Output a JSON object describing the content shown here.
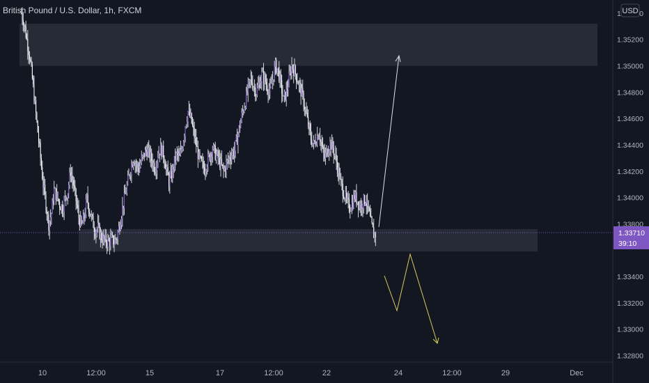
{
  "chart_data": {
    "type": "candlestick",
    "title": "British Pound / U.S. Dollar, 1h, FXCM",
    "currency": "USD",
    "y_ticks": [
      "1.35400",
      "1.35200",
      "1.35000",
      "1.34800",
      "1.34600",
      "1.34400",
      "1.34200",
      "1.34000",
      "1.33800",
      "1.33400",
      "1.33200",
      "1.33000",
      "1.32800"
    ],
    "y_range": [
      1.3275,
      1.355
    ],
    "x_ticks": [
      "10",
      "12:00",
      "15",
      "17",
      "12:00",
      "22",
      "24",
      "12:00",
      "29",
      "Dec"
    ],
    "current_price": "1.33710",
    "countdown": "39:10",
    "close_series": [
      1.354,
      1.3532,
      1.352,
      1.3508,
      1.349,
      1.347,
      1.345,
      1.343,
      1.341,
      1.3395,
      1.338,
      1.3388,
      1.3405,
      1.3401,
      1.3395,
      1.3392,
      1.3399,
      1.3405,
      1.342,
      1.341,
      1.3398,
      1.3385,
      1.3378,
      1.3385,
      1.3399,
      1.339,
      1.3382,
      1.3375,
      1.3377,
      1.3371,
      1.3368,
      1.3367,
      1.3366,
      1.3368,
      1.3366,
      1.337,
      1.338,
      1.3392,
      1.3402,
      1.3412,
      1.3422,
      1.343,
      1.3425,
      1.3422,
      1.3428,
      1.3433,
      1.3436,
      1.3432,
      1.3427,
      1.3422,
      1.3433,
      1.3437,
      1.3433,
      1.3422,
      1.3412,
      1.3417,
      1.3427,
      1.3433,
      1.343,
      1.344,
      1.3455,
      1.3465,
      1.346,
      1.345,
      1.344,
      1.343,
      1.3425,
      1.3422,
      1.3427,
      1.3432,
      1.3438,
      1.3433,
      1.343,
      1.3425,
      1.342,
      1.3425,
      1.343,
      1.3433,
      1.3436,
      1.3445,
      1.3455,
      1.3465,
      1.3473,
      1.3483,
      1.349,
      1.3485,
      1.348,
      1.3486,
      1.3493,
      1.349,
      1.3484,
      1.348,
      1.349,
      1.35,
      1.3497,
      1.3485,
      1.3474,
      1.348,
      1.349,
      1.35,
      1.3496,
      1.349,
      1.3483,
      1.3476,
      1.3466,
      1.3455,
      1.3445,
      1.344,
      1.3445,
      1.345,
      1.3438,
      1.343,
      1.3436,
      1.3441,
      1.3438,
      1.343,
      1.342,
      1.341,
      1.3404,
      1.3397,
      1.3393,
      1.3395,
      1.3401,
      1.3398,
      1.3393,
      1.3396,
      1.3399,
      1.339,
      1.338,
      1.3372
    ],
    "zones": [
      {
        "name": "resistance-zone",
        "price_top": 1.3532,
        "price_bottom": 1.35
      },
      {
        "name": "support-zone",
        "price_top": 1.3376,
        "price_bottom": 1.3359
      }
    ],
    "projections": [
      {
        "name": "bullish-projection",
        "color": "#e0e3eb"
      },
      {
        "name": "bearish-projection",
        "color": "#d9cc5e"
      }
    ],
    "colors": {
      "background": "#131722",
      "candle_up": "#7e57c2",
      "candle_down": "#ffffff",
      "wick": "#d1d4dc",
      "price_label": "#7e57c2"
    },
    "grid": false
  }
}
